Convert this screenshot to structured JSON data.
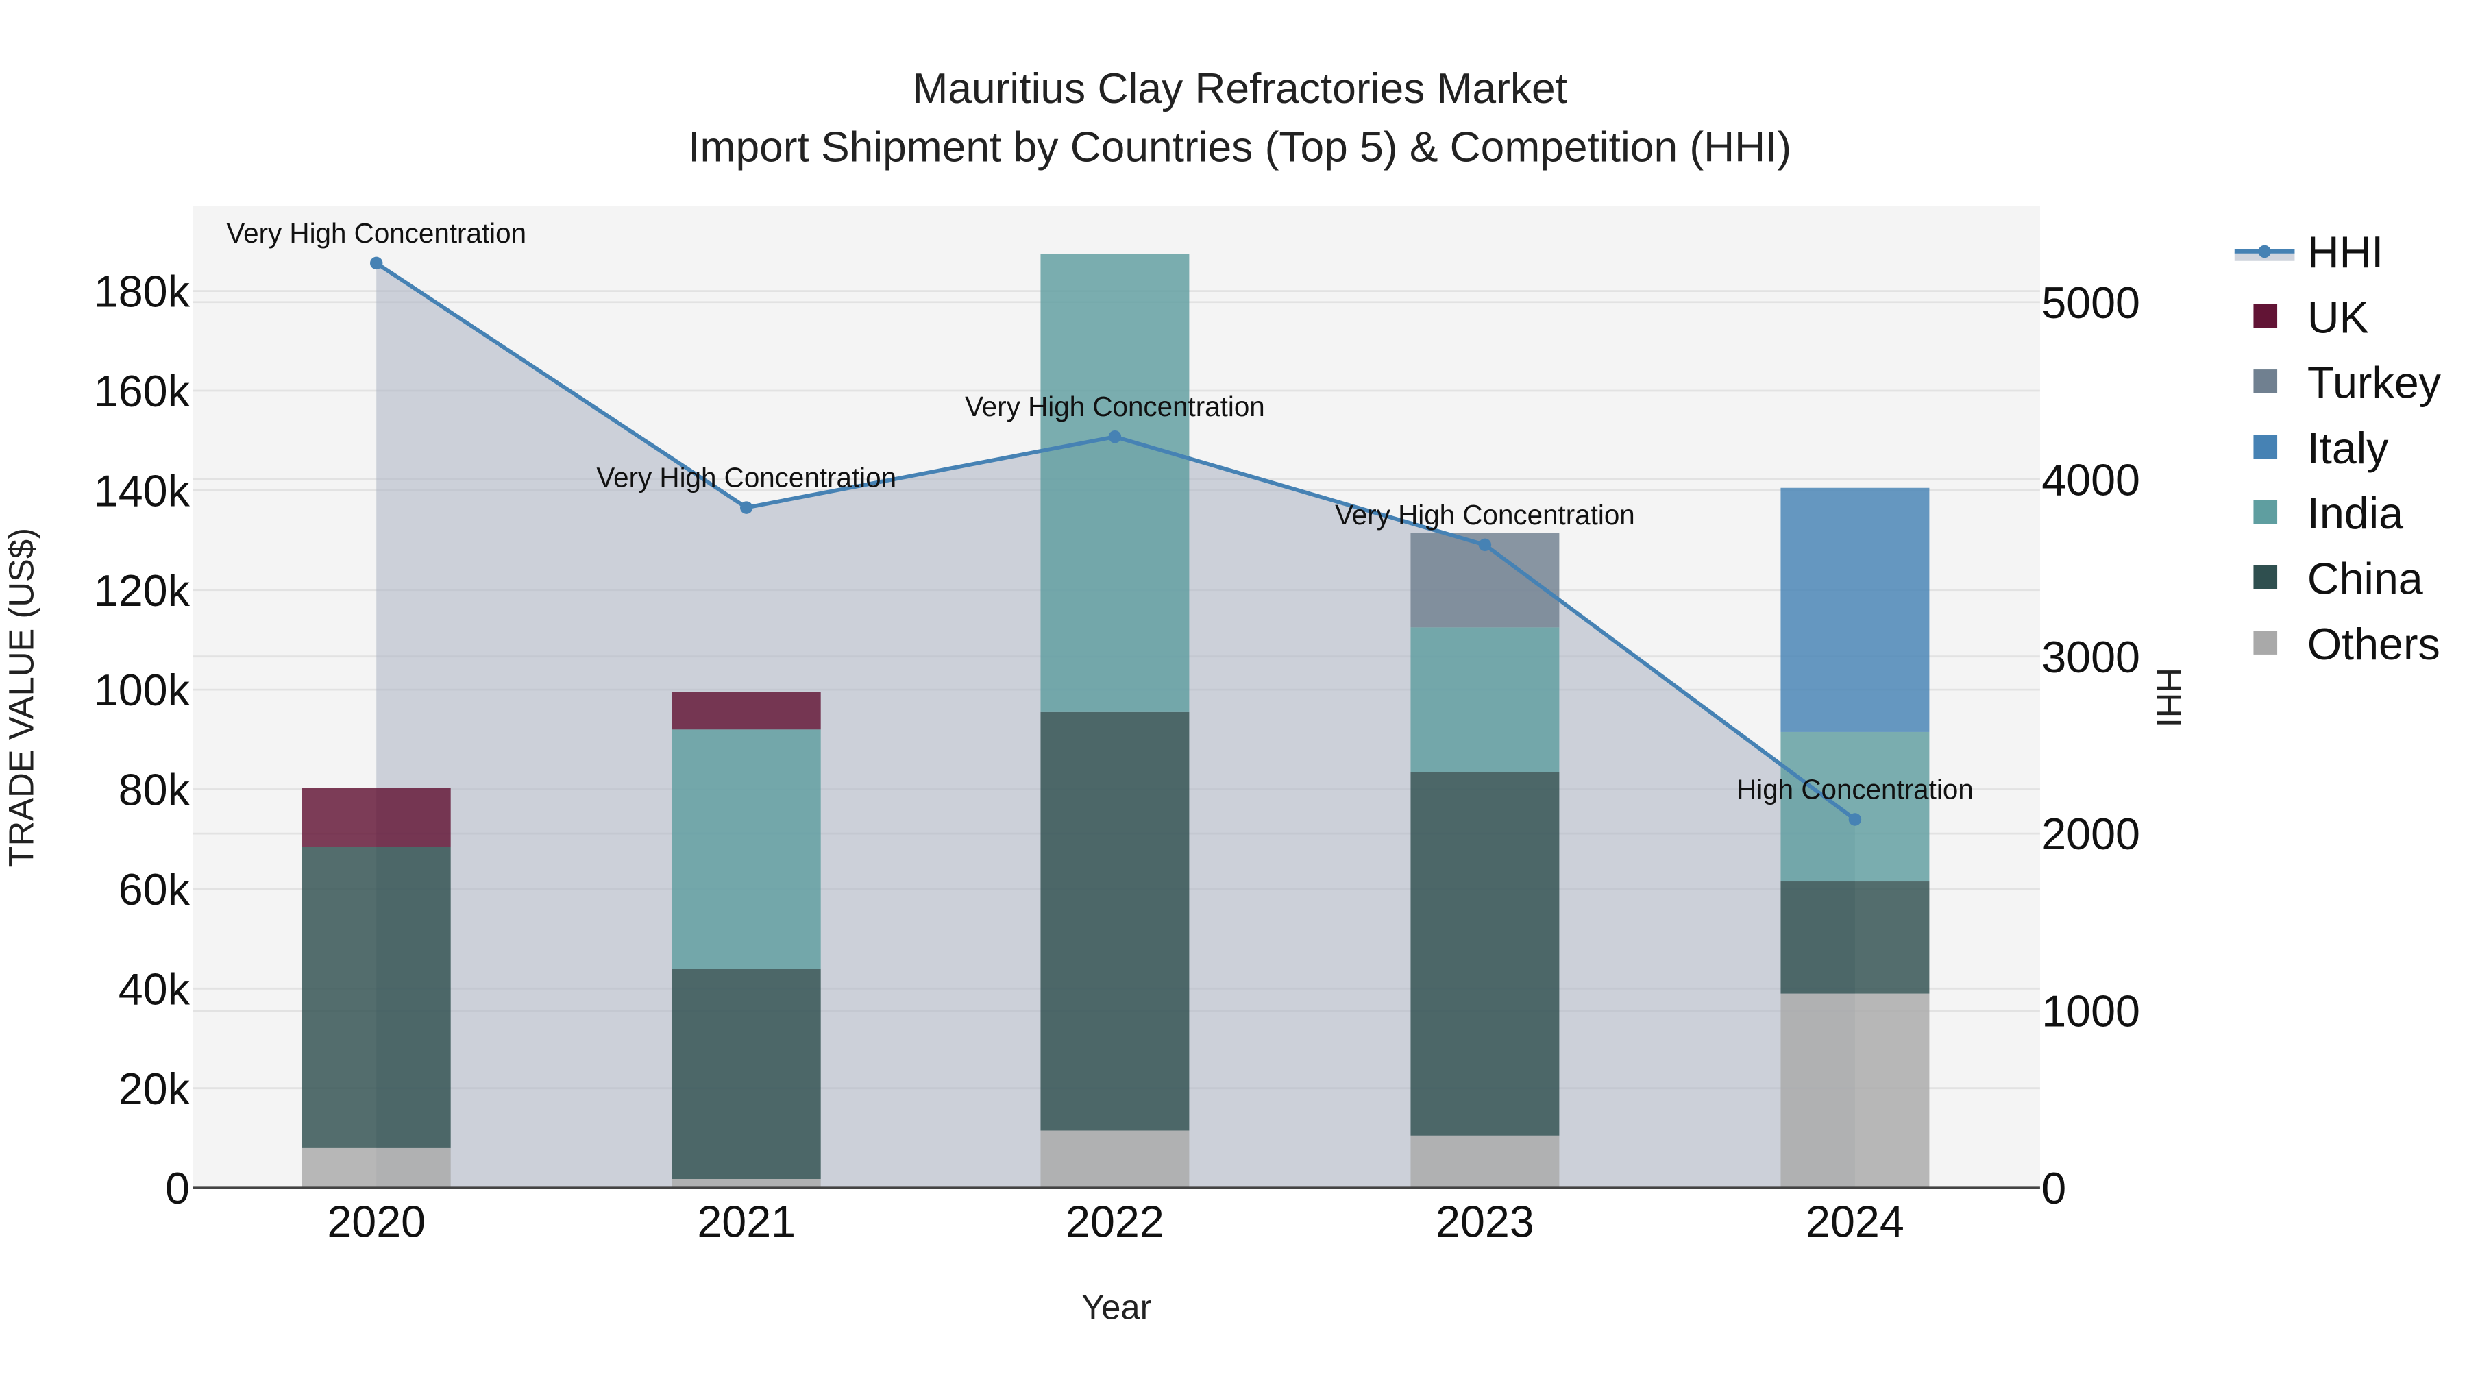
{
  "title": {
    "line1": "Mauritius Clay Refractories Market",
    "line2": "Import Shipment by Countries (Top 5) & Competition (HHI)"
  },
  "axes": {
    "x_title": "Year",
    "y_left_title": "TRADE VALUE (US$)",
    "y_right_title": "HHI",
    "y_left_ticks": [
      "0",
      "20k",
      "40k",
      "60k",
      "80k",
      "100k",
      "120k",
      "140k",
      "160k",
      "180k"
    ],
    "y_right_ticks": [
      "0",
      "1000",
      "2000",
      "3000",
      "4000",
      "5000"
    ],
    "x_ticks": [
      "2020",
      "2021",
      "2022",
      "2023",
      "2024"
    ]
  },
  "legend": {
    "items": [
      {
        "label": "HHI",
        "color": "#4682b4",
        "type": "line"
      },
      {
        "label": "UK",
        "color": "#621435",
        "type": "bar"
      },
      {
        "label": "Turkey",
        "color": "#708090",
        "type": "bar"
      },
      {
        "label": "Italy",
        "color": "#4682b4",
        "type": "bar"
      },
      {
        "label": "India",
        "color": "#5f9ea0",
        "type": "bar"
      },
      {
        "label": "China",
        "color": "#2f4f4f",
        "type": "bar"
      },
      {
        "label": "Others",
        "color": "#a9a9a9",
        "type": "bar"
      }
    ]
  },
  "annotations": [
    {
      "year": "2020",
      "text": "Very High Concentration"
    },
    {
      "year": "2021",
      "text": "Very High Concentration"
    },
    {
      "year": "2022",
      "text": "Very High Concentration"
    },
    {
      "year": "2023",
      "text": "Very High Concentration"
    },
    {
      "year": "2024",
      "text": "High Concentration"
    }
  ],
  "colors": {
    "plot_bg": "#f4f4f4",
    "grid": "#e2e2e2",
    "hhi_line": "#4682b4",
    "hhi_fill": "rgba(176,184,198,0.6)",
    "UK": "#621435",
    "Turkey": "#708090",
    "Italy": "#4682b4",
    "India": "#5f9ea0",
    "China": "#2f4f4f",
    "Others": "#a9a9a9"
  },
  "chart_data": {
    "type": "bar",
    "title": "Mauritius Clay Refractories Market — Import Shipment by Countries (Top 5) & Competition (HHI)",
    "xlabel": "Year",
    "ylabel": "TRADE VALUE (US$)",
    "y2label": "HHI",
    "categories": [
      "2020",
      "2021",
      "2022",
      "2023",
      "2024"
    ],
    "stacking": "stacked",
    "ylim": [
      0,
      196000
    ],
    "y2lim": [
      0,
      5500
    ],
    "grid": true,
    "legend_position": "right",
    "series": [
      {
        "name": "Others",
        "type": "bar",
        "values": [
          8000,
          1800,
          11500,
          10500,
          39000
        ]
      },
      {
        "name": "China",
        "type": "bar",
        "values": [
          60500,
          42200,
          84000,
          73000,
          22500
        ]
      },
      {
        "name": "India",
        "type": "bar",
        "values": [
          0,
          48000,
          92000,
          29000,
          30000
        ]
      },
      {
        "name": "Italy",
        "type": "bar",
        "values": [
          0,
          0,
          0,
          0,
          49000
        ]
      },
      {
        "name": "Turkey",
        "type": "bar",
        "values": [
          0,
          0,
          0,
          19000,
          0
        ]
      },
      {
        "name": "UK",
        "type": "bar",
        "values": [
          11800,
          7500,
          0,
          0,
          0
        ]
      },
      {
        "name": "HHI",
        "type": "line",
        "axis": "y2",
        "values": [
          5220,
          3840,
          4240,
          3630,
          2080
        ]
      }
    ],
    "totals": [
      80300,
      99500,
      187500,
      132000,
      140500
    ],
    "annotations": [
      "Very High Concentration",
      "Very High Concentration",
      "Very High Concentration",
      "Very High Concentration",
      "High Concentration"
    ]
  }
}
